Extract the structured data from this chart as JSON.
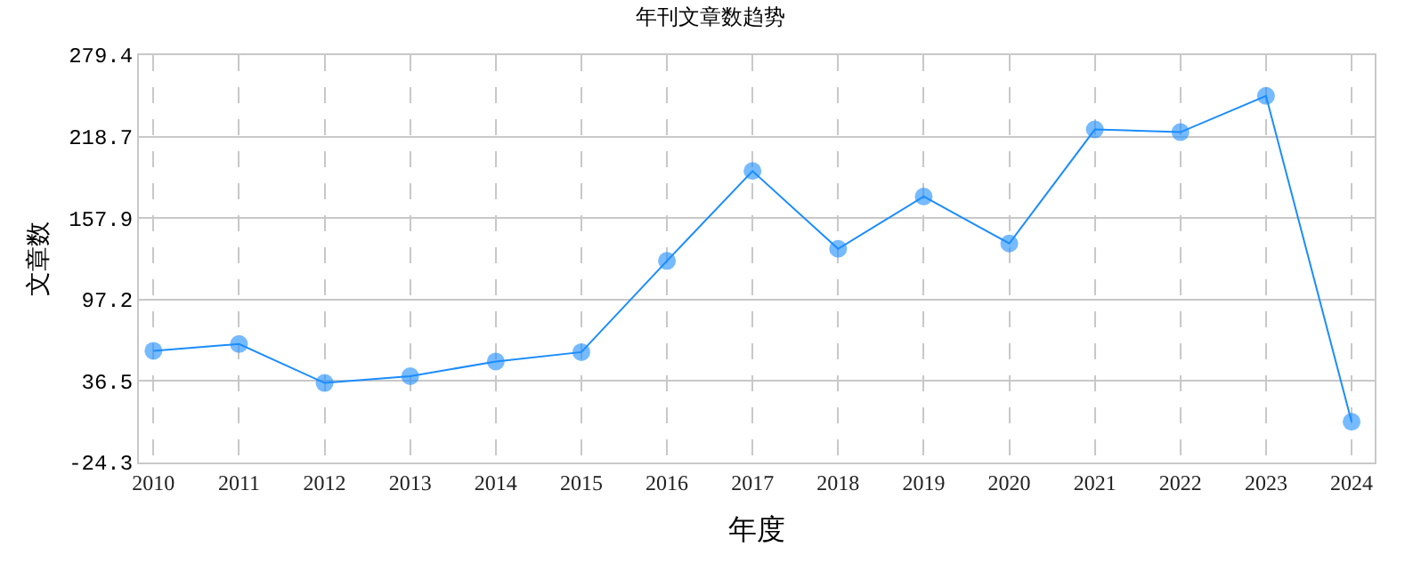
{
  "chart_data": {
    "type": "line",
    "title": "年刊文章数趋势",
    "xlabel": "年度",
    "ylabel": "文章数",
    "categories": [
      "2010",
      "2011",
      "2012",
      "2013",
      "2014",
      "2015",
      "2016",
      "2017",
      "2018",
      "2019",
      "2020",
      "2021",
      "2022",
      "2023",
      "2024"
    ],
    "series": [
      {
        "color": "#1a8cff",
        "values": [
          59,
          64,
          35,
          40,
          51,
          58,
          126,
          193,
          135,
          174,
          139,
          224,
          222,
          249,
          6
        ]
      }
    ],
    "ylim": [
      -24.3,
      279.4
    ],
    "yticks": [
      -24.3,
      36.5,
      97.2,
      157.9,
      218.7,
      279.4
    ],
    "grid": true,
    "marker": "circle",
    "line_style": "solid"
  }
}
